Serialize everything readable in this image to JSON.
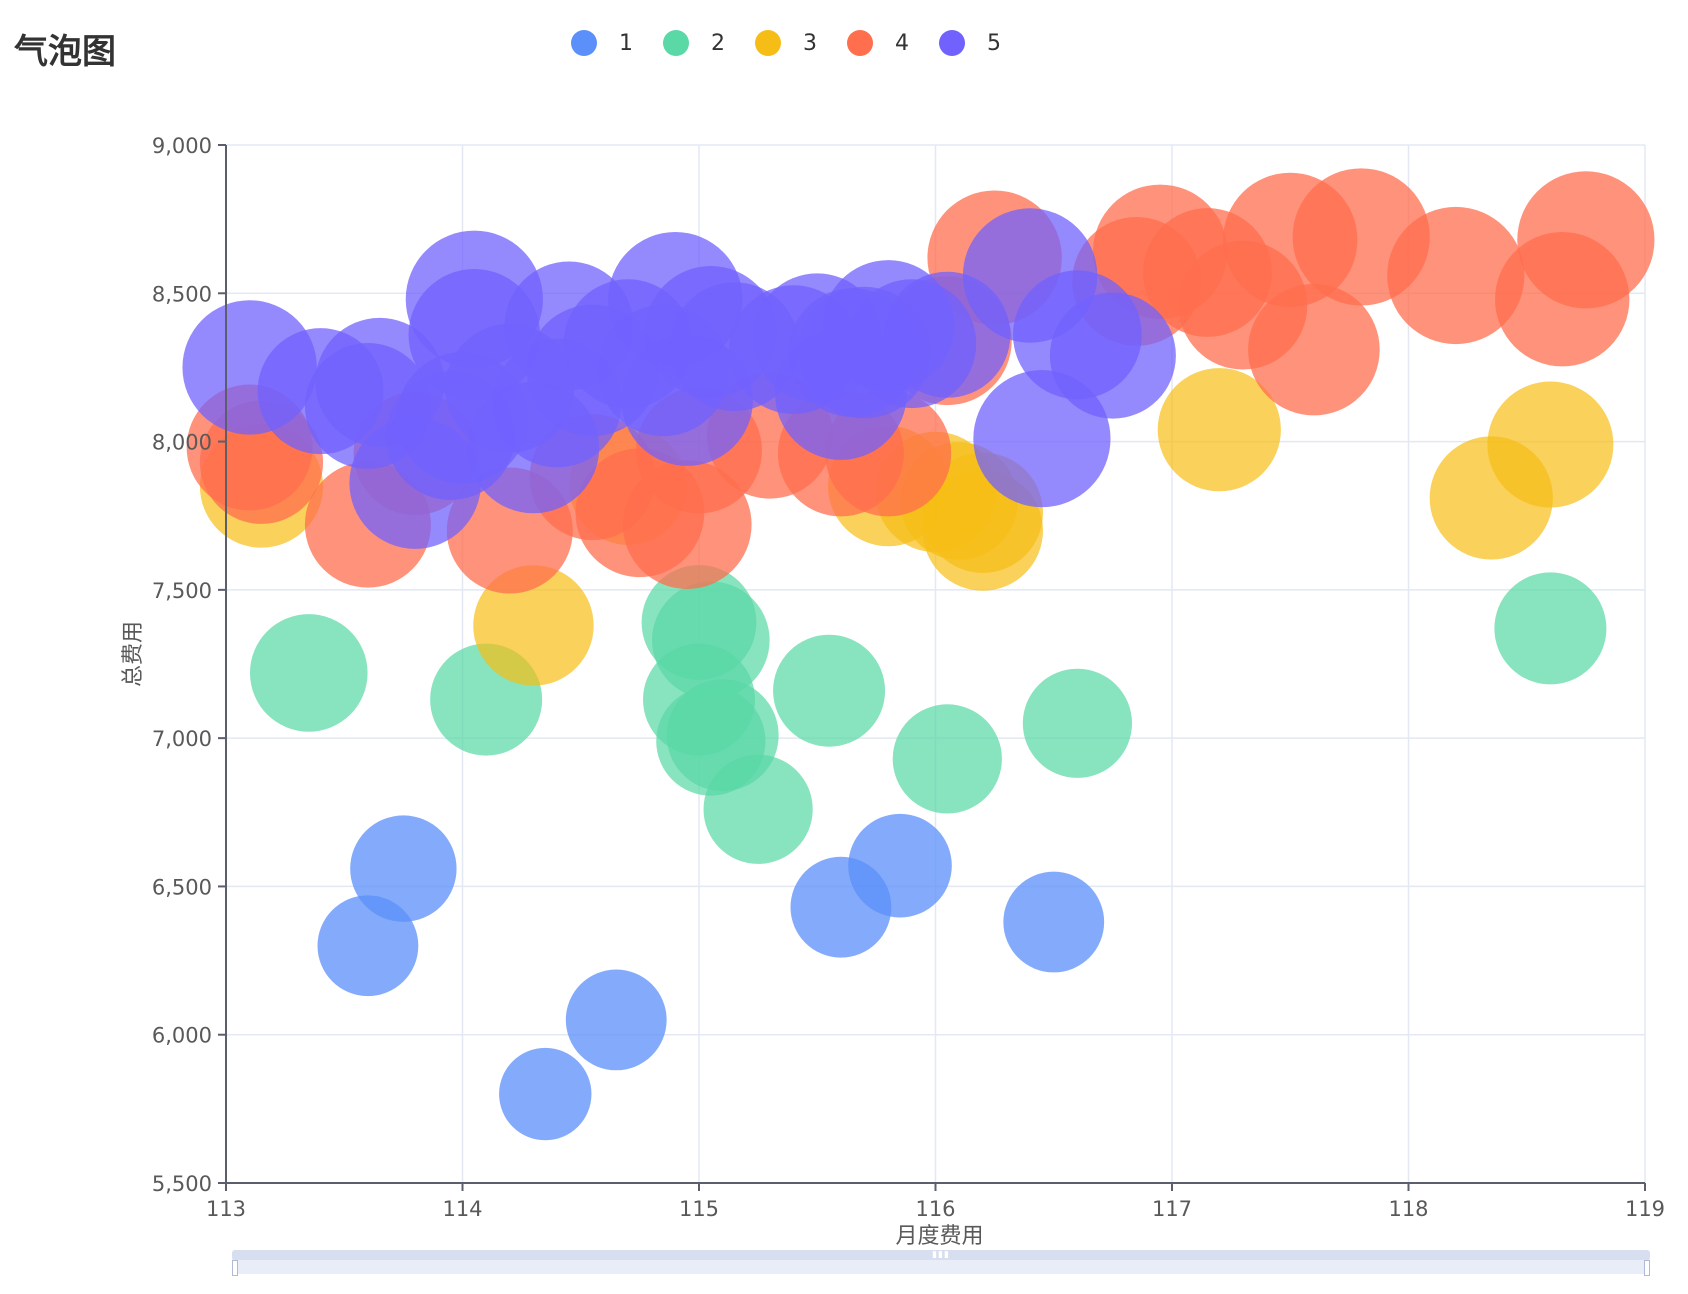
{
  "page": {
    "title": "气泡图"
  },
  "chart_data": {
    "type": "scatter",
    "subtype": "bubble",
    "xlabel": "月度费用",
    "ylabel": "总费用",
    "xlim": [
      113,
      119
    ],
    "ylim": [
      5500,
      9000
    ],
    "x_ticks": [
      "113",
      "114",
      "115",
      "116",
      "117",
      "118",
      "119"
    ],
    "y_ticks": [
      "5,500",
      "6,000",
      "6,500",
      "7,000",
      "7,500",
      "8,000",
      "8,500",
      "9,000"
    ],
    "grid": true,
    "legend_position": "top-center",
    "series": [
      {
        "name": "1",
        "color": "#5b8ff9",
        "points": [
          {
            "x": 113.6,
            "y": 6300,
            "size": 0.72
          },
          {
            "x": 113.75,
            "y": 6560,
            "size": 0.76
          },
          {
            "x": 114.35,
            "y": 5800,
            "size": 0.66
          },
          {
            "x": 114.65,
            "y": 6050,
            "size": 0.72
          },
          {
            "x": 115.6,
            "y": 6430,
            "size": 0.72
          },
          {
            "x": 115.85,
            "y": 6570,
            "size": 0.74
          },
          {
            "x": 116.5,
            "y": 6380,
            "size": 0.72
          }
        ]
      },
      {
        "name": "2",
        "color": "#5ad8a6",
        "points": [
          {
            "x": 113.35,
            "y": 7220,
            "size": 0.84
          },
          {
            "x": 114.1,
            "y": 7130,
            "size": 0.8
          },
          {
            "x": 115.0,
            "y": 7390,
            "size": 0.82
          },
          {
            "x": 115.05,
            "y": 7330,
            "size": 0.84
          },
          {
            "x": 115.0,
            "y": 7130,
            "size": 0.8
          },
          {
            "x": 115.1,
            "y": 7010,
            "size": 0.8
          },
          {
            "x": 115.05,
            "y": 6990,
            "size": 0.78
          },
          {
            "x": 115.25,
            "y": 6760,
            "size": 0.78
          },
          {
            "x": 115.55,
            "y": 7160,
            "size": 0.8
          },
          {
            "x": 116.05,
            "y": 6930,
            "size": 0.78
          },
          {
            "x": 116.6,
            "y": 7050,
            "size": 0.78
          },
          {
            "x": 118.6,
            "y": 7370,
            "size": 0.8
          }
        ]
      },
      {
        "name": "3",
        "color": "#f6bd16",
        "points": [
          {
            "x": 113.15,
            "y": 7850,
            "size": 0.88
          },
          {
            "x": 114.3,
            "y": 7380,
            "size": 0.86
          },
          {
            "x": 114.7,
            "y": 7850,
            "size": 0.84
          },
          {
            "x": 115.8,
            "y": 7850,
            "size": 0.86
          },
          {
            "x": 116.0,
            "y": 7830,
            "size": 0.86
          },
          {
            "x": 116.1,
            "y": 7800,
            "size": 0.84
          },
          {
            "x": 116.2,
            "y": 7760,
            "size": 0.86
          },
          {
            "x": 116.2,
            "y": 7700,
            "size": 0.86
          },
          {
            "x": 117.2,
            "y": 8040,
            "size": 0.88
          },
          {
            "x": 118.35,
            "y": 7810,
            "size": 0.88
          },
          {
            "x": 118.6,
            "y": 7990,
            "size": 0.9
          }
        ]
      },
      {
        "name": "4",
        "color": "#ff6e4d",
        "points": [
          {
            "x": 113.1,
            "y": 7980,
            "size": 0.9
          },
          {
            "x": 113.15,
            "y": 7930,
            "size": 0.88
          },
          {
            "x": 113.6,
            "y": 7720,
            "size": 0.9
          },
          {
            "x": 113.8,
            "y": 7960,
            "size": 0.88
          },
          {
            "x": 114.2,
            "y": 7700,
            "size": 0.9
          },
          {
            "x": 114.55,
            "y": 7880,
            "size": 0.9
          },
          {
            "x": 114.75,
            "y": 7760,
            "size": 0.92
          },
          {
            "x": 114.95,
            "y": 7720,
            "size": 0.92
          },
          {
            "x": 115.0,
            "y": 7970,
            "size": 0.9
          },
          {
            "x": 115.3,
            "y": 8020,
            "size": 0.9
          },
          {
            "x": 115.6,
            "y": 7960,
            "size": 0.9
          },
          {
            "x": 115.8,
            "y": 7960,
            "size": 0.9
          },
          {
            "x": 116.05,
            "y": 8340,
            "size": 0.92
          },
          {
            "x": 116.25,
            "y": 8620,
            "size": 0.96
          },
          {
            "x": 116.85,
            "y": 8540,
            "size": 0.92
          },
          {
            "x": 116.95,
            "y": 8640,
            "size": 0.96
          },
          {
            "x": 117.15,
            "y": 8570,
            "size": 0.92
          },
          {
            "x": 117.3,
            "y": 8460,
            "size": 0.92
          },
          {
            "x": 117.5,
            "y": 8680,
            "size": 0.96
          },
          {
            "x": 117.6,
            "y": 8310,
            "size": 0.94
          },
          {
            "x": 117.8,
            "y": 8690,
            "size": 0.98
          },
          {
            "x": 118.2,
            "y": 8560,
            "size": 0.98
          },
          {
            "x": 118.65,
            "y": 8480,
            "size": 0.96
          },
          {
            "x": 118.75,
            "y": 8680,
            "size": 0.98
          }
        ]
      },
      {
        "name": "5",
        "color": "#7262fd",
        "points": [
          {
            "x": 113.1,
            "y": 8250,
            "size": 0.96
          },
          {
            "x": 113.4,
            "y": 8170,
            "size": 0.9
          },
          {
            "x": 113.6,
            "y": 8120,
            "size": 0.9
          },
          {
            "x": 113.65,
            "y": 8200,
            "size": 0.92
          },
          {
            "x": 113.8,
            "y": 7860,
            "size": 0.94
          },
          {
            "x": 113.95,
            "y": 8020,
            "size": 0.92
          },
          {
            "x": 114.0,
            "y": 8080,
            "size": 0.94
          },
          {
            "x": 114.05,
            "y": 8480,
            "size": 0.98
          },
          {
            "x": 114.05,
            "y": 8360,
            "size": 0.94
          },
          {
            "x": 114.2,
            "y": 8180,
            "size": 0.92
          },
          {
            "x": 114.3,
            "y": 7980,
            "size": 0.94
          },
          {
            "x": 114.4,
            "y": 8130,
            "size": 0.92
          },
          {
            "x": 114.45,
            "y": 8390,
            "size": 0.92
          },
          {
            "x": 114.55,
            "y": 8240,
            "size": 0.94
          },
          {
            "x": 114.7,
            "y": 8330,
            "size": 0.92
          },
          {
            "x": 114.85,
            "y": 8240,
            "size": 0.94
          },
          {
            "x": 114.9,
            "y": 8480,
            "size": 0.96
          },
          {
            "x": 114.95,
            "y": 8140,
            "size": 0.94
          },
          {
            "x": 115.05,
            "y": 8370,
            "size": 0.94
          },
          {
            "x": 115.15,
            "y": 8320,
            "size": 0.92
          },
          {
            "x": 115.4,
            "y": 8310,
            "size": 0.92
          },
          {
            "x": 115.5,
            "y": 8350,
            "size": 0.92
          },
          {
            "x": 115.6,
            "y": 8160,
            "size": 0.94
          },
          {
            "x": 115.65,
            "y": 8300,
            "size": 0.92
          },
          {
            "x": 115.7,
            "y": 8300,
            "size": 0.94
          },
          {
            "x": 115.8,
            "y": 8390,
            "size": 0.94
          },
          {
            "x": 115.9,
            "y": 8330,
            "size": 0.92
          },
          {
            "x": 116.05,
            "y": 8360,
            "size": 0.9
          },
          {
            "x": 116.4,
            "y": 8560,
            "size": 0.96
          },
          {
            "x": 116.45,
            "y": 8010,
            "size": 0.98
          },
          {
            "x": 116.6,
            "y": 8360,
            "size": 0.92
          },
          {
            "x": 116.75,
            "y": 8290,
            "size": 0.9
          }
        ]
      }
    ]
  }
}
